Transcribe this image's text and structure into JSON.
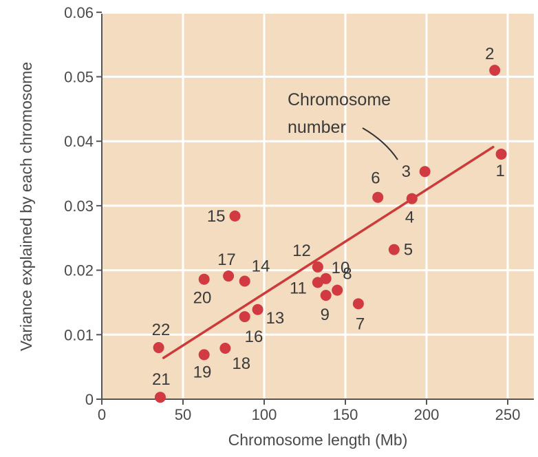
{
  "chart_data": {
    "type": "scatter",
    "title": "",
    "xlabel": "Chromosome length (Mb)",
    "ylabel": "Variance explained by each chromosome",
    "xlim": [
      0,
      265
    ],
    "ylim": [
      0,
      0.06
    ],
    "x_ticks": [
      "0",
      "50",
      "100",
      "150",
      "200",
      "250"
    ],
    "y_ticks": [
      "0",
      "0.01",
      "0.02",
      "0.03",
      "0.04",
      "0.05",
      "0.06"
    ],
    "grid": true,
    "colors": {
      "plot_background": "#f3dcc0",
      "grid": "#ffffff",
      "axis": "#555555",
      "points": "#d03a40",
      "fit_line": "#cc3a3a"
    },
    "points": [
      {
        "label": "1",
        "x": 246,
        "y": 0.038
      },
      {
        "label": "2",
        "x": 242,
        "y": 0.051
      },
      {
        "label": "3",
        "x": 199,
        "y": 0.0353
      },
      {
        "label": "4",
        "x": 191,
        "y": 0.0311
      },
      {
        "label": "5",
        "x": 180,
        "y": 0.0232
      },
      {
        "label": "6",
        "x": 170,
        "y": 0.0313
      },
      {
        "label": "7",
        "x": 158,
        "y": 0.0148
      },
      {
        "label": "8",
        "x": 145,
        "y": 0.0169
      },
      {
        "label": "9",
        "x": 138,
        "y": 0.0161
      },
      {
        "label": "10",
        "x": 138,
        "y": 0.0187
      },
      {
        "label": "11",
        "x": 133,
        "y": 0.0181
      },
      {
        "label": "12",
        "x": 133,
        "y": 0.0205
      },
      {
        "label": "13",
        "x": 96,
        "y": 0.0139
      },
      {
        "label": "14",
        "x": 88,
        "y": 0.0183
      },
      {
        "label": "15",
        "x": 82,
        "y": 0.0284
      },
      {
        "label": "16",
        "x": 88,
        "y": 0.0128
      },
      {
        "label": "17",
        "x": 78,
        "y": 0.0191
      },
      {
        "label": "18",
        "x": 76,
        "y": 0.0079
      },
      {
        "label": "19",
        "x": 63,
        "y": 0.0069
      },
      {
        "label": "20",
        "x": 63,
        "y": 0.0186
      },
      {
        "label": "21",
        "x": 36,
        "y": 0.0003
      },
      {
        "label": "22",
        "x": 35,
        "y": 0.008
      }
    ],
    "fit_line": {
      "x": [
        38,
        241
      ],
      "y": [
        0.0064,
        0.0391
      ]
    },
    "annotation": {
      "lines": [
        "Chromosome",
        "number"
      ],
      "points_to": "3"
    }
  }
}
